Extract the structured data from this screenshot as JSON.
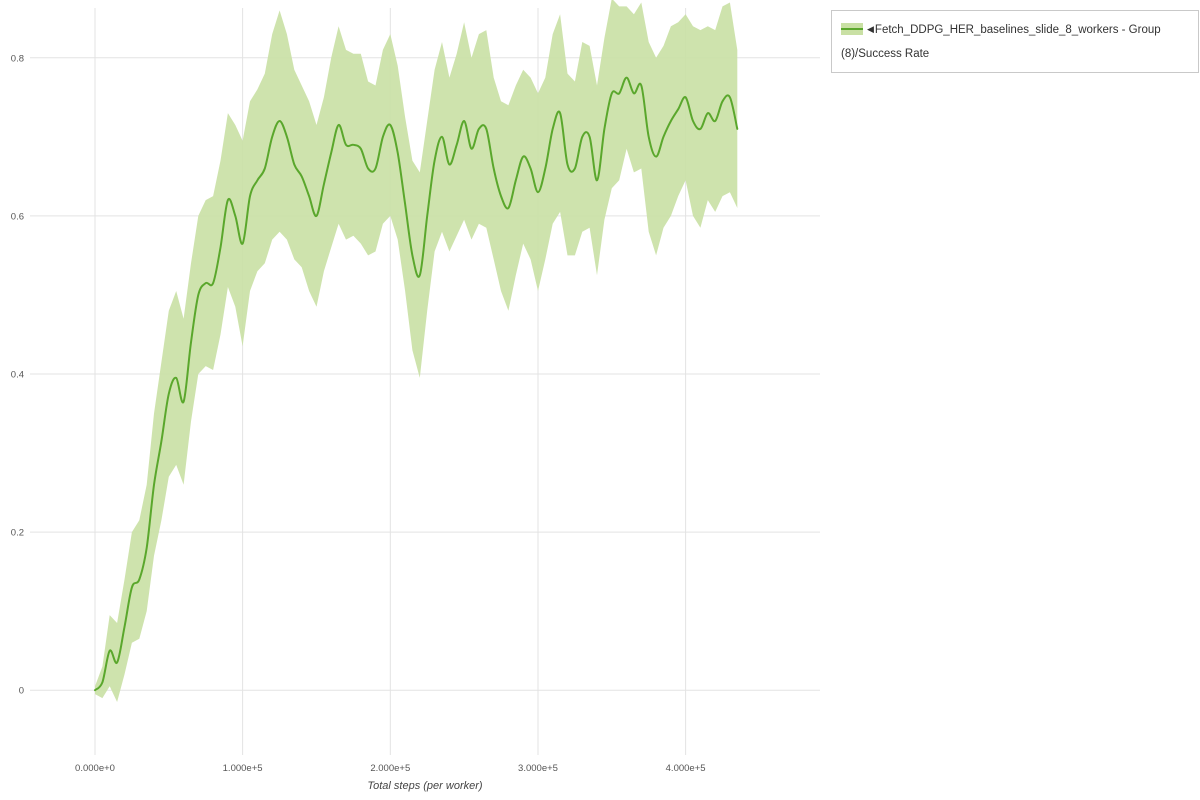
{
  "chart": {
    "legend": {
      "collapse_icon": "◀",
      "label": "Fetch_DDPG_HER_baselines_slide_8_workers - Group (8)/Success Rate"
    },
    "colors": {
      "line": "#5aa72c",
      "band": "#c9e0a4",
      "grid": "#e3e3e3",
      "tick_text": "#555555",
      "axis_label_text": "#444444",
      "legend_border": "#c9c9c9",
      "plot_bg": "#ffffff"
    }
  },
  "chart_data": {
    "type": "line",
    "title": "",
    "xlabel": "Total steps (per worker)",
    "ylabel": "",
    "xlim": [
      -44000,
      491000
    ],
    "ylim": [
      -0.082,
      0.863
    ],
    "xticks": [
      0,
      100000,
      200000,
      300000,
      400000
    ],
    "xtick_labels": [
      "0.000e+0",
      "1.000e+5",
      "2.000e+5",
      "3.000e+5",
      "4.000e+5"
    ],
    "yticks": [
      0,
      0.2,
      0.4,
      0.6,
      0.8
    ],
    "ytick_labels": [
      "0",
      "0.2",
      "0.4",
      "0.6",
      "0.8"
    ],
    "grid": true,
    "legend_position": "top-right-outside",
    "legend": [
      {
        "label": "Fetch_DDPG_HER_baselines_slide_8_workers - Group (8)/Success Rate",
        "color": "#5aa72c"
      }
    ],
    "series": [
      {
        "name": "Fetch_DDPG_HER_baselines_slide_8_workers - Group (8)/Success Rate",
        "x_start": 0,
        "x_step": 5000,
        "band_note": "shaded region spans mean - band_halfwidth to mean + band_halfwidth",
        "mean": [
          0.0,
          0.01,
          0.05,
          0.035,
          0.08,
          0.13,
          0.14,
          0.18,
          0.26,
          0.315,
          0.375,
          0.395,
          0.365,
          0.44,
          0.5,
          0.515,
          0.515,
          0.56,
          0.62,
          0.6,
          0.565,
          0.625,
          0.645,
          0.66,
          0.7,
          0.72,
          0.7,
          0.665,
          0.65,
          0.625,
          0.6,
          0.64,
          0.68,
          0.715,
          0.69,
          0.69,
          0.685,
          0.66,
          0.66,
          0.7,
          0.715,
          0.68,
          0.615,
          0.55,
          0.525,
          0.6,
          0.67,
          0.7,
          0.665,
          0.69,
          0.72,
          0.685,
          0.71,
          0.71,
          0.66,
          0.625,
          0.61,
          0.645,
          0.675,
          0.66,
          0.63,
          0.66,
          0.71,
          0.73,
          0.665,
          0.66,
          0.7,
          0.7,
          0.645,
          0.71,
          0.755,
          0.755,
          0.775,
          0.755,
          0.765,
          0.7,
          0.675,
          0.7,
          0.72,
          0.735,
          0.75,
          0.72,
          0.71,
          0.73,
          0.72,
          0.745,
          0.75,
          0.71
        ],
        "band_halfwidth": [
          0.005,
          0.02,
          0.045,
          0.05,
          0.06,
          0.07,
          0.075,
          0.08,
          0.09,
          0.1,
          0.105,
          0.11,
          0.105,
          0.1,
          0.1,
          0.105,
          0.11,
          0.11,
          0.11,
          0.115,
          0.13,
          0.12,
          0.115,
          0.12,
          0.13,
          0.14,
          0.13,
          0.12,
          0.115,
          0.12,
          0.115,
          0.11,
          0.12,
          0.125,
          0.12,
          0.115,
          0.12,
          0.11,
          0.105,
          0.11,
          0.115,
          0.11,
          0.11,
          0.12,
          0.13,
          0.12,
          0.115,
          0.12,
          0.11,
          0.115,
          0.125,
          0.115,
          0.12,
          0.125,
          0.115,
          0.12,
          0.13,
          0.12,
          0.11,
          0.115,
          0.125,
          0.115,
          0.12,
          0.125,
          0.115,
          0.11,
          0.12,
          0.115,
          0.12,
          0.115,
          0.12,
          0.11,
          0.09,
          0.1,
          0.105,
          0.12,
          0.125,
          0.115,
          0.12,
          0.11,
          0.105,
          0.12,
          0.125,
          0.11,
          0.115,
          0.12,
          0.12,
          0.1
        ]
      }
    ]
  }
}
